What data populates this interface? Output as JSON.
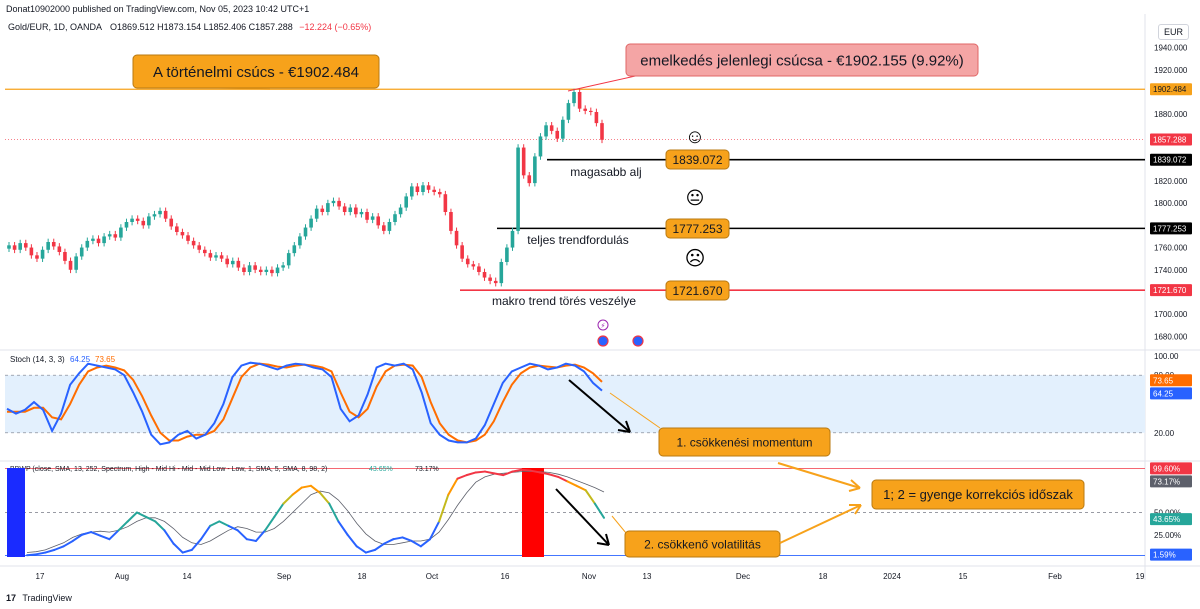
{
  "header": {
    "published": "Donat10902000 published on TradingView.com, Nov 05, 2023 10:42 UTC+1",
    "symbol": "Gold/EUR, 1D, OANDA",
    "ohlc_label": "O1869.512  H1873.154  L1852.406  C1857.288",
    "change": "−12.224 (−0.65%)",
    "currency": "EUR"
  },
  "footer": {
    "brand": "TradingView"
  },
  "colors": {
    "up": "#26a69a",
    "down": "#f23645",
    "ath_line": "#f7a21b",
    "stoch_k": "#2962ff",
    "stoch_d": "#ff6d00",
    "accent_box": "#f7a21b"
  },
  "chart_data": [
    {
      "type": "candlestick",
      "title": "Gold/EUR, 1D, OANDA",
      "currency": "EUR",
      "ylim": [
        1670,
        1950
      ],
      "price_ticks": [
        "1940.000",
        "1920.000",
        "1900.000",
        "1880.000",
        "1860.000",
        "1840.000",
        "1820.000",
        "1800.000",
        "1780.000",
        "1760.000",
        "1740.000",
        "1720.000",
        "1700.000",
        "1680.000"
      ],
      "x_ticks": [
        "17",
        "Aug",
        "14",
        "Sep",
        "18",
        "Oct",
        "16",
        "Nov",
        "13",
        "Dec",
        "18",
        "2024",
        "15",
        "Feb",
        "19"
      ],
      "price_labels": {
        "ath": "1902.484",
        "last": "1857.288",
        "l1": "1839.072",
        "l2": "1777.253",
        "l3": "1721.670"
      },
      "levels": [
        {
          "value": 1902.484,
          "color": "#f7a21b"
        },
        {
          "value": 1839.072,
          "color": "#000000"
        },
        {
          "value": 1777.253,
          "color": "#000000"
        },
        {
          "value": 1721.67,
          "color": "#f23645"
        }
      ],
      "last_close": 1857.288,
      "closes": [
        1762,
        1758,
        1764,
        1760,
        1753,
        1750,
        1758,
        1765,
        1761,
        1756,
        1748,
        1740,
        1752,
        1760,
        1766,
        1768,
        1764,
        1770,
        1772,
        1769,
        1778,
        1783,
        1786,
        1784,
        1780,
        1788,
        1790,
        1793,
        1786,
        1779,
        1774,
        1771,
        1766,
        1762,
        1758,
        1755,
        1751,
        1753,
        1750,
        1745,
        1748,
        1742,
        1738,
        1744,
        1740,
        1738,
        1740,
        1737,
        1742,
        1744,
        1755,
        1762,
        1770,
        1778,
        1786,
        1795,
        1792,
        1800,
        1802,
        1797,
        1792,
        1796,
        1790,
        1792,
        1785,
        1788,
        1780,
        1775,
        1783,
        1790,
        1796,
        1806,
        1815,
        1810,
        1816,
        1812,
        1810,
        1808,
        1792,
        1775,
        1762,
        1750,
        1745,
        1743,
        1738,
        1733,
        1730,
        1728,
        1747,
        1760,
        1775,
        1850,
        1825,
        1818,
        1842,
        1860,
        1870,
        1865,
        1858,
        1875,
        1890,
        1900,
        1885,
        1883,
        1882,
        1872,
        1857
      ],
      "annotations": {
        "ath_box": "A történelmi csúcs - €1902.484",
        "peak_box": "emelkedés jelenlegi csúcsa - €1902.155 (9.92%)",
        "l1_text": "magasabb alj",
        "l2_text": "teljes trendfordulás",
        "l3_text": "makro trend törés veszélye",
        "face_happy": "☺",
        "face_neutral": "😐",
        "face_sad": "☹"
      }
    },
    {
      "type": "line",
      "title": "Stoch (14, 3, 3)",
      "ylim": [
        0,
        100
      ],
      "band": [
        20,
        80
      ],
      "ticks": [
        "100.00",
        "80.00",
        "20.00"
      ],
      "values_label": {
        "k": "64.25",
        "d": "73.65"
      },
      "series": [
        {
          "name": "%K",
          "values": [
            45,
            40,
            44,
            52,
            44,
            22,
            40,
            70,
            82,
            92,
            90,
            88,
            86,
            80,
            62,
            42,
            18,
            8,
            10,
            18,
            22,
            14,
            18,
            30,
            50,
            78,
            90,
            93,
            92,
            89,
            86,
            90,
            92,
            91,
            88,
            86,
            78,
            45,
            32,
            38,
            60,
            88,
            92,
            90,
            92,
            86,
            62,
            30,
            18,
            12,
            10,
            10,
            14,
            28,
            50,
            72,
            84,
            88,
            92,
            90,
            86,
            88,
            92,
            90,
            84,
            72,
            64
          ]
        },
        {
          "name": "%D",
          "values": [
            42,
            42,
            42,
            46,
            46,
            36,
            34,
            50,
            70,
            84,
            88,
            90,
            88,
            85,
            75,
            58,
            38,
            20,
            12,
            12,
            16,
            18,
            18,
            22,
            34,
            56,
            78,
            88,
            92,
            91,
            89,
            88,
            90,
            91,
            90,
            88,
            84,
            62,
            42,
            36,
            45,
            68,
            84,
            90,
            91,
            90,
            78,
            52,
            30,
            18,
            12,
            10,
            12,
            18,
            32,
            52,
            70,
            82,
            88,
            90,
            89,
            88,
            90,
            91,
            88,
            82,
            73
          ]
        }
      ],
      "annotation": "1. csökkenési momentum"
    },
    {
      "type": "line",
      "title": "BBWP (close, SMA, 13, 252, Spectrum, High - Mid Hi - Mid - Mid Low - Low, 1, SMA, 5, SMA, 8, 98, 2)",
      "ylim": [
        0,
        100
      ],
      "ticks": [
        "50.00%",
        "25.00%"
      ],
      "values_label": {
        "bbwp": "43.65%",
        "ma": "73.17%"
      },
      "price_labels": {
        "top": "99.60%",
        "ma": "73.17%",
        "val": "43.65%",
        "low": "1.59%"
      },
      "series": [
        {
          "name": "BBWP",
          "values": [
            2,
            3,
            5,
            8,
            12,
            18,
            25,
            28,
            24,
            20,
            30,
            40,
            50,
            45,
            40,
            30,
            15,
            5,
            8,
            20,
            35,
            40,
            35,
            30,
            20,
            18,
            30,
            45,
            60,
            70,
            78,
            80,
            72,
            60,
            40,
            25,
            12,
            5,
            8,
            15,
            20,
            22,
            18,
            12,
            20,
            40,
            70,
            88,
            92,
            95,
            96,
            94,
            92,
            96,
            98,
            97,
            95,
            93,
            90,
            85,
            80,
            75,
            60,
            44
          ]
        },
        {
          "name": "MA",
          "values": [
            5,
            6,
            8,
            12,
            16,
            22,
            26,
            28,
            29,
            28,
            30,
            34,
            40,
            44,
            44,
            40,
            32,
            22,
            16,
            14,
            18,
            24,
            30,
            34,
            32,
            28,
            28,
            32,
            40,
            50,
            60,
            70,
            74,
            72,
            64,
            52,
            38,
            26,
            18,
            14,
            14,
            16,
            18,
            18,
            20,
            28,
            42,
            58,
            72,
            84,
            90,
            93,
            94,
            95,
            96,
            96,
            96,
            95,
            93,
            90,
            86,
            82,
            78,
            73
          ]
        }
      ],
      "annotation_2": "2. csökkenő volatilitás",
      "annotation_summary": "1; 2 = gyenge korrekciós időszak"
    }
  ]
}
